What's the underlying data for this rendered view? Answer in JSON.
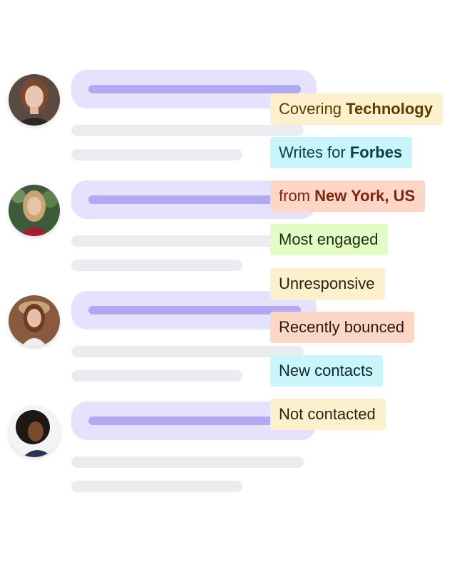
{
  "contacts": [
    {
      "avatar": "woman-portrait-1"
    },
    {
      "avatar": "woman-portrait-2"
    },
    {
      "avatar": "woman-portrait-3"
    },
    {
      "avatar": "woman-portrait-4"
    }
  ],
  "tags": [
    {
      "prefix": "Covering ",
      "bold": "Technology",
      "bg": "#fdf0cc",
      "fg": "#5a3d00"
    },
    {
      "prefix": "Writes for ",
      "bold": "Forbes",
      "bg": "#c9f5fb",
      "fg": "#07404a"
    },
    {
      "prefix": "from ",
      "bold": "New York, US",
      "bg": "#fdd6c6",
      "fg": "#7a2612"
    },
    {
      "prefix": "Most engaged",
      "bold": "",
      "bg": "#e3fbc4",
      "fg": "#1f2a10"
    },
    {
      "prefix": "Unresponsive",
      "bold": "",
      "bg": "#fdf0cc",
      "fg": "#2a2410"
    },
    {
      "prefix": "Recently bounced",
      "bold": "",
      "bg": "#fdd6c6",
      "fg": "#2a1810"
    },
    {
      "prefix": "New contacts",
      "bold": "",
      "bg": "#c9f5fb",
      "fg": "#10282c"
    },
    {
      "prefix": "Not contacted",
      "bold": "",
      "bg": "#fdf0cc",
      "fg": "#2a2410"
    }
  ],
  "colors": {
    "card_head": "#e6e2fd",
    "title_line": "#b2a9f2",
    "skeleton_line": "#ebecef"
  }
}
